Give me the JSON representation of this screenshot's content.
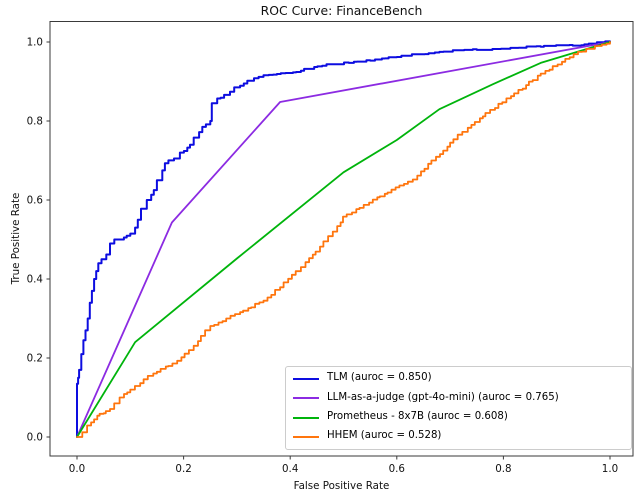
{
  "chart_data": {
    "type": "line",
    "title": "ROC Curve: FinanceBench",
    "xlabel": "False Positive Rate",
    "ylabel": "True Positive Rate",
    "xlim": [
      -0.05,
      1.05
    ],
    "ylim": [
      -0.05,
      1.05
    ],
    "x_ticks": [
      "0.0",
      "0.2",
      "0.4",
      "0.6",
      "0.8",
      "1.0"
    ],
    "y_ticks": [
      "0.0",
      "0.2",
      "0.4",
      "0.6",
      "0.8",
      "1.0"
    ],
    "grid": false,
    "legend_position": "lower right",
    "series": [
      {
        "name": "TLM",
        "auroc": 0.85,
        "legend_label": "TLM (auroc = 0.850)",
        "color": "#0d0de0",
        "style": "step",
        "line_width": 2,
        "points": [
          [
            0,
            0
          ],
          [
            0,
            0.135
          ],
          [
            0.002,
            0.15
          ],
          [
            0.004,
            0.17
          ],
          [
            0.008,
            0.21
          ],
          [
            0.012,
            0.245
          ],
          [
            0.016,
            0.27
          ],
          [
            0.02,
            0.3
          ],
          [
            0.024,
            0.34
          ],
          [
            0.028,
            0.37
          ],
          [
            0.032,
            0.4
          ],
          [
            0.036,
            0.42
          ],
          [
            0.04,
            0.44
          ],
          [
            0.046,
            0.45
          ],
          [
            0.055,
            0.462
          ],
          [
            0.062,
            0.49
          ],
          [
            0.07,
            0.5
          ],
          [
            0.088,
            0.505
          ],
          [
            0.1,
            0.515
          ],
          [
            0.109,
            0.53
          ],
          [
            0.114,
            0.55
          ],
          [
            0.12,
            0.578
          ],
          [
            0.131,
            0.6
          ],
          [
            0.144,
            0.625
          ],
          [
            0.15,
            0.65
          ],
          [
            0.16,
            0.675
          ],
          [
            0.165,
            0.693
          ],
          [
            0.182,
            0.705
          ],
          [
            0.193,
            0.72
          ],
          [
            0.212,
            0.74
          ],
          [
            0.219,
            0.758
          ],
          [
            0.229,
            0.772
          ],
          [
            0.235,
            0.785
          ],
          [
            0.25,
            0.8
          ],
          [
            0.253,
            0.845
          ],
          [
            0.263,
            0.857
          ],
          [
            0.276,
            0.866
          ],
          [
            0.287,
            0.874
          ],
          [
            0.295,
            0.885
          ],
          [
            0.313,
            0.895
          ],
          [
            0.332,
            0.908
          ],
          [
            0.35,
            0.916
          ],
          [
            0.375,
            0.919
          ],
          [
            0.42,
            0.927
          ],
          [
            0.46,
            0.94
          ],
          [
            0.51,
            0.947
          ],
          [
            0.55,
            0.953
          ],
          [
            0.6,
            0.962
          ],
          [
            0.68,
            0.975
          ],
          [
            0.75,
            0.98
          ],
          [
            0.82,
            0.985
          ],
          [
            0.87,
            0.988
          ],
          [
            0.93,
            0.991
          ],
          [
            0.96,
            0.996
          ],
          [
            1,
            1
          ]
        ]
      },
      {
        "name": "LLM-as-a-judge (gpt-4o-mini)",
        "auroc": 0.765,
        "legend_label": "LLM-as-a-judge (gpt-4o-mini) (auroc = 0.765)",
        "color": "#8c2be2",
        "style": "linear",
        "line_width": 1.8,
        "points": [
          [
            0,
            0
          ],
          [
            0.178,
            0.543
          ],
          [
            0.381,
            0.848
          ],
          [
            1,
            1
          ]
        ]
      },
      {
        "name": "Prometheus - 8x7B",
        "auroc": 0.608,
        "legend_label": "Prometheus - 8x7B (auroc = 0.608)",
        "color": "#00b40c",
        "style": "linear",
        "line_width": 1.8,
        "points": [
          [
            0,
            0
          ],
          [
            0.109,
            0.24
          ],
          [
            0.3,
            0.452
          ],
          [
            0.5,
            0.67
          ],
          [
            0.6,
            0.752
          ],
          [
            0.68,
            0.83
          ],
          [
            0.78,
            0.893
          ],
          [
            0.87,
            0.947
          ],
          [
            1,
            1
          ]
        ]
      },
      {
        "name": "HHEM",
        "auroc": 0.528,
        "legend_label": "HHEM (auroc = 0.528)",
        "color": "#ff750d",
        "style": "step",
        "line_width": 1.8,
        "points": [
          [
            0,
            0
          ],
          [
            0.01,
            0.012
          ],
          [
            0.019,
            0.029
          ],
          [
            0.038,
            0.054
          ],
          [
            0.05,
            0.06
          ],
          [
            0.062,
            0.071
          ],
          [
            0.08,
            0.1
          ],
          [
            0.1,
            0.12
          ],
          [
            0.125,
            0.146
          ],
          [
            0.15,
            0.165
          ],
          [
            0.188,
            0.193
          ],
          [
            0.21,
            0.22
          ],
          [
            0.25,
            0.281
          ],
          [
            0.28,
            0.3
          ],
          [
            0.306,
            0.316
          ],
          [
            0.35,
            0.345
          ],
          [
            0.381,
            0.379
          ],
          [
            0.42,
            0.43
          ],
          [
            0.456,
            0.482
          ],
          [
            0.48,
            0.52
          ],
          [
            0.499,
            0.558
          ],
          [
            0.53,
            0.58
          ],
          [
            0.555,
            0.601
          ],
          [
            0.59,
            0.626
          ],
          [
            0.63,
            0.652
          ],
          [
            0.665,
            0.7
          ],
          [
            0.7,
            0.745
          ],
          [
            0.74,
            0.79
          ],
          [
            0.775,
            0.828
          ],
          [
            0.82,
            0.87
          ],
          [
            0.87,
            0.92
          ],
          [
            0.91,
            0.95
          ],
          [
            0.94,
            0.975
          ],
          [
            1,
            1
          ]
        ]
      }
    ]
  },
  "style": {
    "spine_color": "#3a3a3a",
    "tick_color": "#3a3a3a",
    "background": "#ffffff"
  }
}
